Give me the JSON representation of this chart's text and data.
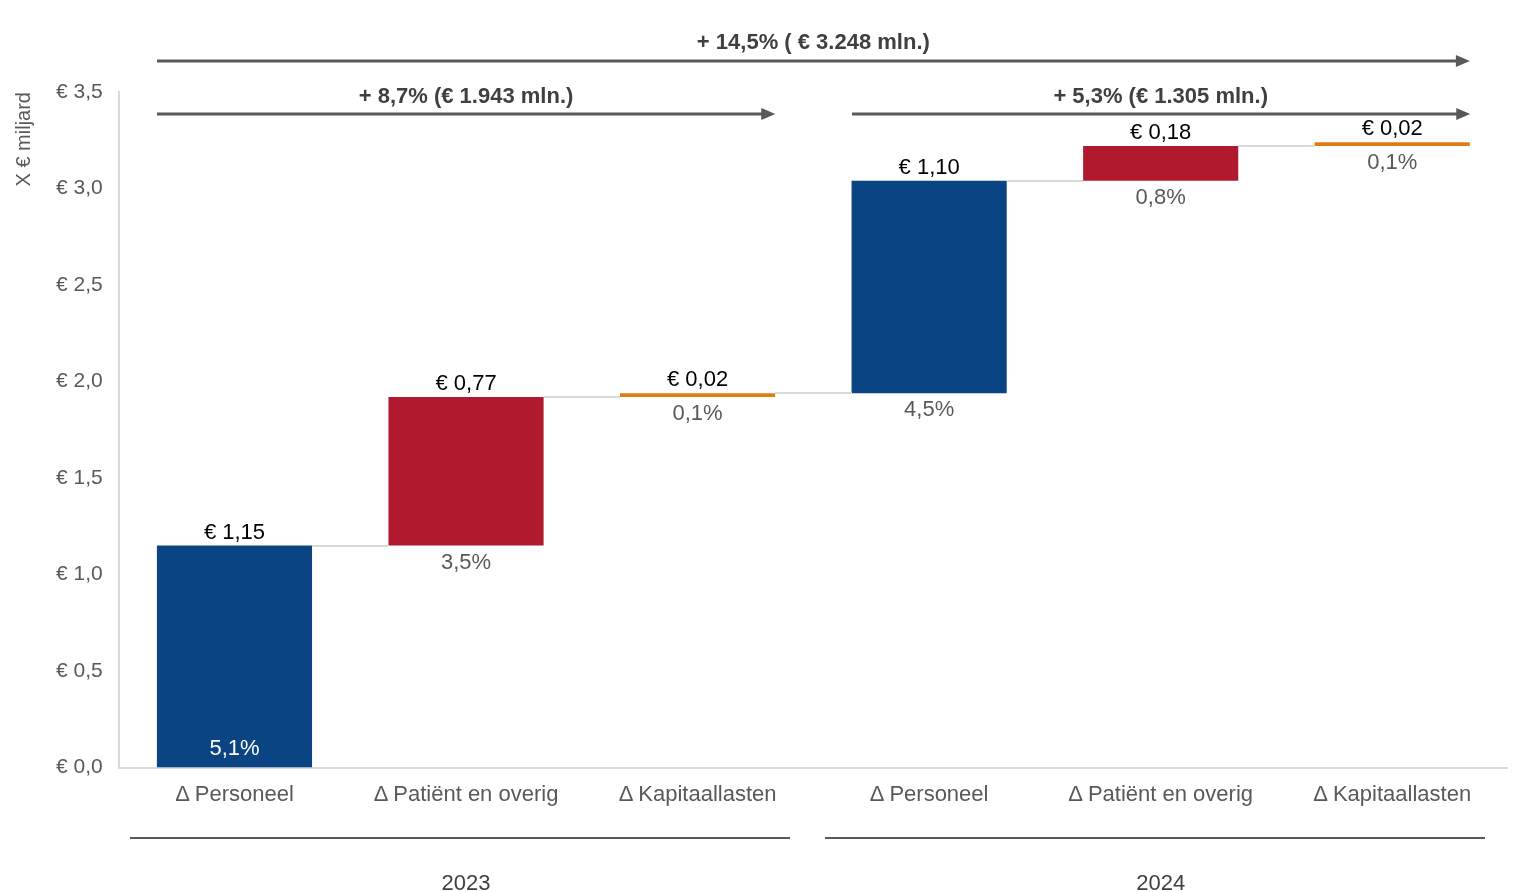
{
  "chart_data": {
    "type": "bar",
    "ylabel": "X € miljard",
    "categories": [
      "Δ Personeel",
      "Δ Patiënt en overig",
      "Δ Kapitaallasten",
      "Δ Personeel",
      "Δ Patiënt en overig",
      "Δ Kapitaallasten"
    ],
    "series": [
      {
        "colors": [
          "#0b4482",
          "#b0192e",
          "#e07b10",
          "#0b4482",
          "#b0192e",
          "#e07b10"
        ],
        "base": [
          0,
          1.15,
          1.92,
          1.94,
          3.04,
          3.22
        ],
        "values": [
          1.15,
          0.77,
          0.02,
          1.1,
          0.18,
          0.02
        ],
        "value_labels": [
          "€ 1,15",
          "€ 0,77",
          "€ 0,02",
          "€ 1,10",
          "€ 0,18",
          "€ 0,02"
        ]
      }
    ],
    "ylim": [
      0,
      3.5
    ],
    "yticks": [
      {
        "value": 0,
        "label": "€ 0,0"
      },
      {
        "value": 0.5,
        "label": "€ 0,5"
      },
      {
        "value": 1,
        "label": "€ 1,0"
      },
      {
        "value": 1.5,
        "label": "€ 1,5"
      },
      {
        "value": 2,
        "label": "€ 2,0"
      },
      {
        "value": 2.5,
        "label": "€ 2,5"
      },
      {
        "value": 3,
        "label": "€ 3,0"
      },
      {
        "value": 3.5,
        "label": "€ 3,5"
      }
    ],
    "grid": false,
    "annotations": [
      "5,1%",
      "3,5%",
      "0,1%",
      "4,5%",
      "0,8%",
      "0,1%",
      "+ 14,5% ( € 3.248 mln.)",
      "+ 8,7% (€ 1.943 mln.)",
      "+ 5,3% (€ 1.305 mln.)",
      "2023",
      "2024"
    ]
  }
}
